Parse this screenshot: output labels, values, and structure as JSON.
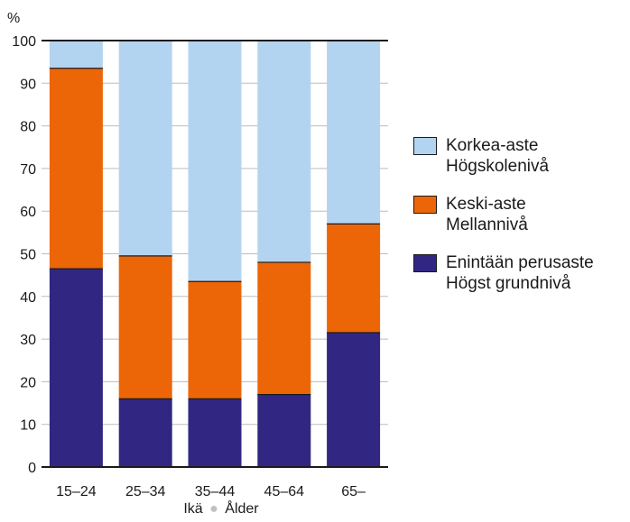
{
  "chart_data": {
    "type": "bar",
    "stacked": true,
    "ylabel": "%",
    "ylim": [
      0,
      100
    ],
    "yticks": [
      0,
      10,
      20,
      30,
      40,
      50,
      60,
      70,
      80,
      90,
      100
    ],
    "categories": [
      "15–24",
      "25–34",
      "35–44",
      "45–64",
      "65–"
    ],
    "xlabel": {
      "fi": "Ikä",
      "sv": "Ålder"
    },
    "grid": true,
    "legend_position": "right",
    "series": [
      {
        "name_fi": "Enintään perusaste",
        "name_sv": "Högst grundnivå",
        "color": "#312783",
        "values": [
          46.5,
          16,
          16,
          17,
          31.5
        ]
      },
      {
        "name_fi": "Keski-aste",
        "name_sv": "Mellannivå",
        "color": "#ec6608",
        "values": [
          47,
          33.5,
          27.5,
          31,
          25.5
        ]
      },
      {
        "name_fi": "Korkea-aste",
        "name_sv": "Högskolenivå",
        "color": "#b3d4f0",
        "values": [
          6.5,
          50.5,
          56.5,
          52,
          43
        ]
      }
    ]
  }
}
